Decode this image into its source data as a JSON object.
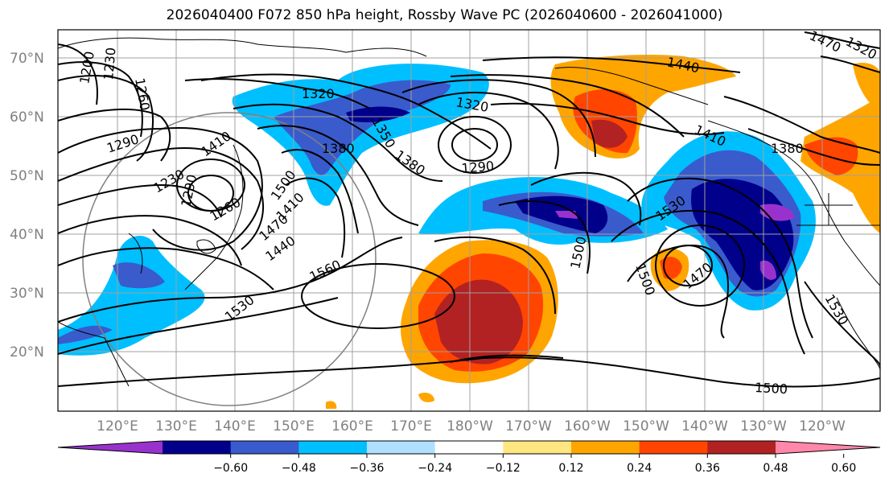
{
  "title": "2026040400 F072 850 hPa height, Rossby Wave PC (2026040600 - 2026041000)",
  "map": {
    "lat_labels": [
      "70°N",
      "60°N",
      "50°N",
      "40°N",
      "30°N",
      "20°N"
    ],
    "lon_labels": [
      "120°E",
      "130°E",
      "140°E",
      "150°E",
      "160°E",
      "170°E",
      "180°W",
      "170°W",
      "160°W",
      "150°W",
      "140°W",
      "130°W",
      "120°W"
    ],
    "contour_labels": [
      "1200",
      "1230",
      "1260",
      "1290",
      "1320",
      "1350",
      "1380",
      "1410",
      "1440",
      "1470",
      "1500",
      "1530",
      "1560",
      "1290",
      "1260",
      "1320",
      "1290",
      "1380",
      "1410",
      "1440",
      "1410",
      "1380",
      "1530",
      "1500",
      "1470",
      "1500",
      "1530",
      "1500",
      "1470",
      "1320",
      "1230"
    ],
    "contour_interval": 30,
    "grid": true
  },
  "colorbar": {
    "ticks": [
      "−0.60",
      "−0.48",
      "−0.36",
      "−0.24",
      "−0.12",
      "0.12",
      "0.24",
      "0.36",
      "0.48",
      "0.60"
    ],
    "colors": [
      "#9932cc",
      "#00008b",
      "#3a5bcc",
      "#00bfff",
      "#b0e0ff",
      "#ffffff",
      "#ffe680",
      "#ffa500",
      "#ff4500",
      "#b22222",
      "#ff88aa"
    ]
  }
}
